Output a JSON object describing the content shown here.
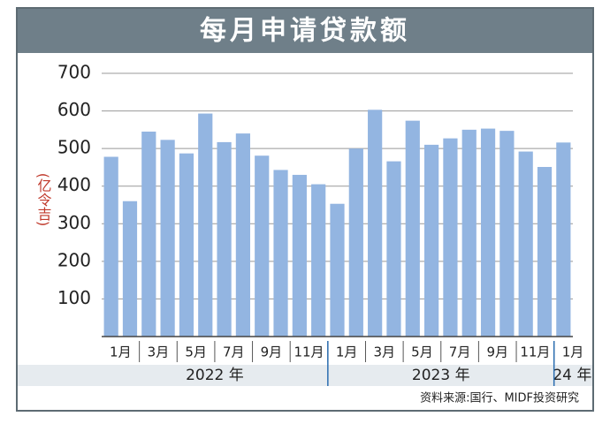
{
  "chart_data": {
    "type": "bar",
    "title": "每月申请贷款额",
    "y_label": "(亿令吉)",
    "categories": [
      "1月",
      null,
      "3月",
      null,
      "5月",
      null,
      "7月",
      null,
      "9月",
      null,
      "11月",
      null,
      "1月",
      null,
      "3月",
      null,
      "5月",
      null,
      "7月",
      null,
      "9月",
      null,
      "11月",
      null,
      "1月"
    ],
    "years": [
      "2022 年",
      "2023 年",
      "24 年"
    ],
    "values": [
      478,
      360,
      545,
      523,
      487,
      593,
      517,
      540,
      481,
      443,
      430,
      405,
      353,
      500,
      603,
      466,
      574,
      510,
      527,
      550,
      553,
      547,
      492,
      451,
      516
    ],
    "color": "#93b5e1",
    "ylim": [
      0,
      700
    ],
    "yticks": [
      100,
      200,
      300,
      400,
      500,
      600,
      700
    ],
    "grid": true,
    "source": "资料来源:国行、MIDF投资研究"
  }
}
